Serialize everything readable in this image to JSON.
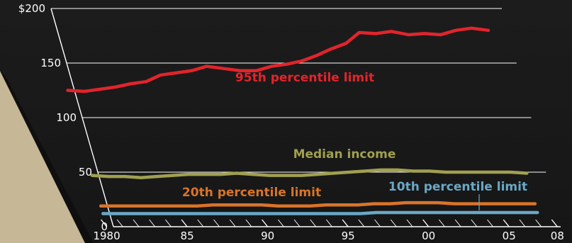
{
  "chart_data": {
    "type": "line",
    "title": "",
    "xlabel": "",
    "ylabel": "",
    "xlim": [
      1979.8,
      2007.5
    ],
    "ylim": [
      0,
      200
    ],
    "grid": true,
    "x_ticks": [
      {
        "x": 1980,
        "label": "1980"
      },
      {
        "x": 1985,
        "label": "85"
      },
      {
        "x": 1990,
        "label": "90"
      },
      {
        "x": 1995,
        "label": "95"
      },
      {
        "x": 2000,
        "label": "00"
      },
      {
        "x": 2005,
        "label": "05"
      },
      {
        "x": 2008,
        "label": "08"
      }
    ],
    "y_ticks": [
      {
        "y": 0,
        "label": "0"
      },
      {
        "y": 50,
        "label": "50"
      },
      {
        "y": 100,
        "label": "100"
      },
      {
        "y": 150,
        "label": "150"
      },
      {
        "y": 200,
        "label": "$200"
      }
    ],
    "series": [
      {
        "name": "95th percentile limit",
        "color": "#e2242c",
        "x": [
          1980,
          1981,
          1982,
          1983,
          1984,
          1985,
          1986,
          1987,
          1988,
          1989,
          1990,
          1991,
          1992,
          1993,
          1994,
          1995,
          1996,
          1997,
          1998,
          1999,
          2000,
          2001,
          2002,
          2003,
          2004,
          2005,
          2006,
          2007
        ],
        "values": [
          125,
          124,
          126,
          128,
          131,
          133,
          139,
          141,
          143,
          147,
          145,
          143,
          143,
          147,
          149,
          152,
          157,
          163,
          168,
          178,
          177,
          179,
          176,
          177,
          176,
          180,
          182,
          180
        ]
      },
      {
        "name": "Median income",
        "color": "#a0a050",
        "x": [
          1980,
          1981,
          1982,
          1983,
          1984,
          1985,
          1986,
          1987,
          1988,
          1989,
          1990,
          1991,
          1992,
          1993,
          1994,
          1995,
          1996,
          1997,
          1998,
          1999,
          2000,
          2001,
          2002,
          2003,
          2004,
          2005,
          2006,
          2007
        ],
        "values": [
          47,
          46,
          46,
          45,
          46,
          47,
          48,
          48,
          48,
          49,
          48,
          47,
          47,
          47,
          48,
          49,
          50,
          51,
          52,
          52,
          51,
          51,
          50,
          50,
          50,
          50,
          50,
          49
        ]
      },
      {
        "name": "20th percentile limit",
        "color": "#d9742a",
        "x": [
          1980,
          1981,
          1982,
          1983,
          1984,
          1985,
          1986,
          1987,
          1988,
          1989,
          1990,
          1991,
          1992,
          1993,
          1994,
          1995,
          1996,
          1997,
          1998,
          1999,
          2000,
          2001,
          2002,
          2003,
          2004,
          2005,
          2006,
          2007
        ],
        "values": [
          19,
          19,
          19,
          19,
          19,
          19,
          19,
          20,
          20,
          20,
          20,
          19,
          19,
          19,
          20,
          20,
          20,
          21,
          21,
          22,
          22,
          22,
          21,
          21,
          21,
          21,
          21,
          21
        ]
      },
      {
        "name": "10th percentile limit",
        "color": "#6aa8c7",
        "x": [
          1980,
          1981,
          1982,
          1983,
          1984,
          1985,
          1986,
          1987,
          1988,
          1989,
          1990,
          1991,
          1992,
          1993,
          1994,
          1995,
          1996,
          1997,
          1998,
          1999,
          2000,
          2001,
          2002,
          2003,
          2004,
          2005,
          2006,
          2007
        ],
        "values": [
          12,
          12,
          12,
          12,
          12,
          12,
          12,
          12,
          12,
          12,
          12,
          12,
          12,
          12,
          12,
          12,
          12,
          13,
          13,
          13,
          13,
          13,
          13,
          13,
          13,
          13,
          13,
          13
        ]
      }
    ]
  }
}
